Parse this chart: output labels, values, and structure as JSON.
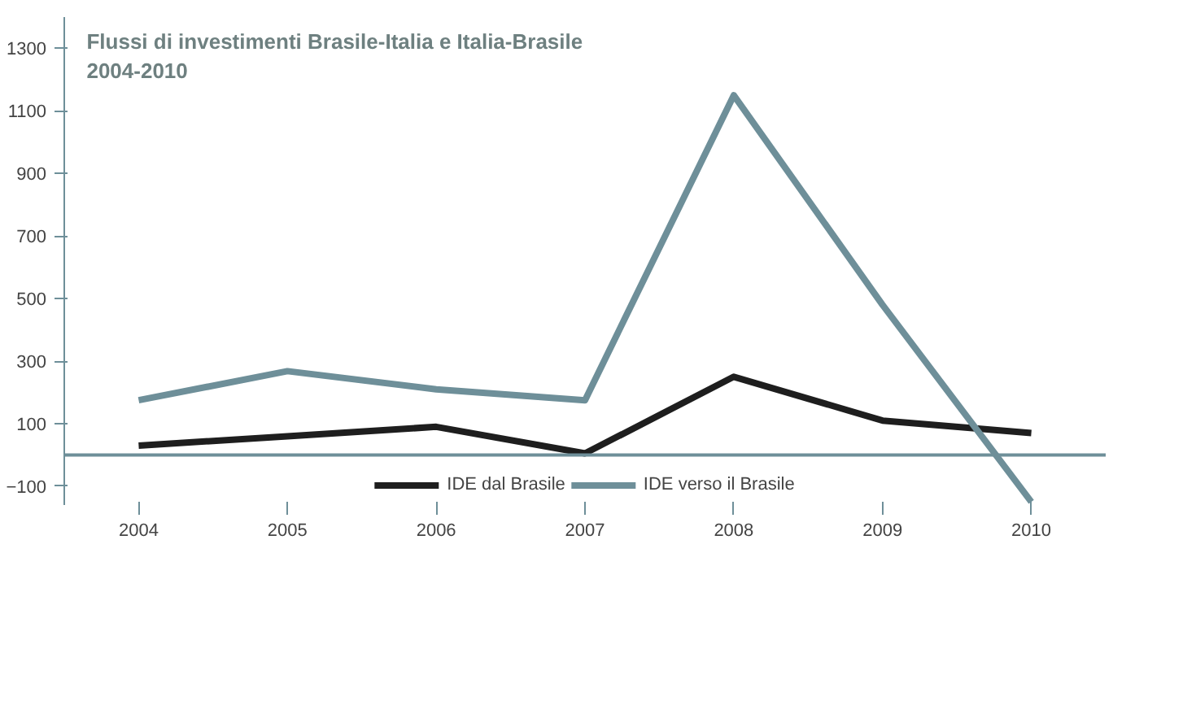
{
  "chart_data": {
    "type": "line",
    "title": "Flussi di investimenti Brasile-Italia e Italia-Brasile\n2004-2010",
    "categories": [
      "2004",
      "2005",
      "2006",
      "2007",
      "2008",
      "2009",
      "2010"
    ],
    "series": [
      {
        "name": "IDE dal Brasile",
        "color": "#1e1e1e",
        "values": [
          30,
          60,
          90,
          5,
          250,
          110,
          70
        ]
      },
      {
        "name": "IDE verso il Brasile",
        "color": "#6e8f99",
        "values": [
          175,
          268,
          210,
          175,
          1150,
          480,
          -150
        ]
      }
    ],
    "ylim": [
      -160,
      1400
    ],
    "yticks": [
      -100,
      100,
      300,
      500,
      700,
      900,
      1100,
      1300
    ],
    "ref_lines": [
      {
        "axis": "y",
        "value": 0,
        "color": "#6e8f99"
      }
    ],
    "grid": false,
    "legend": "bottom",
    "marker": "none",
    "line_style": "solid"
  }
}
